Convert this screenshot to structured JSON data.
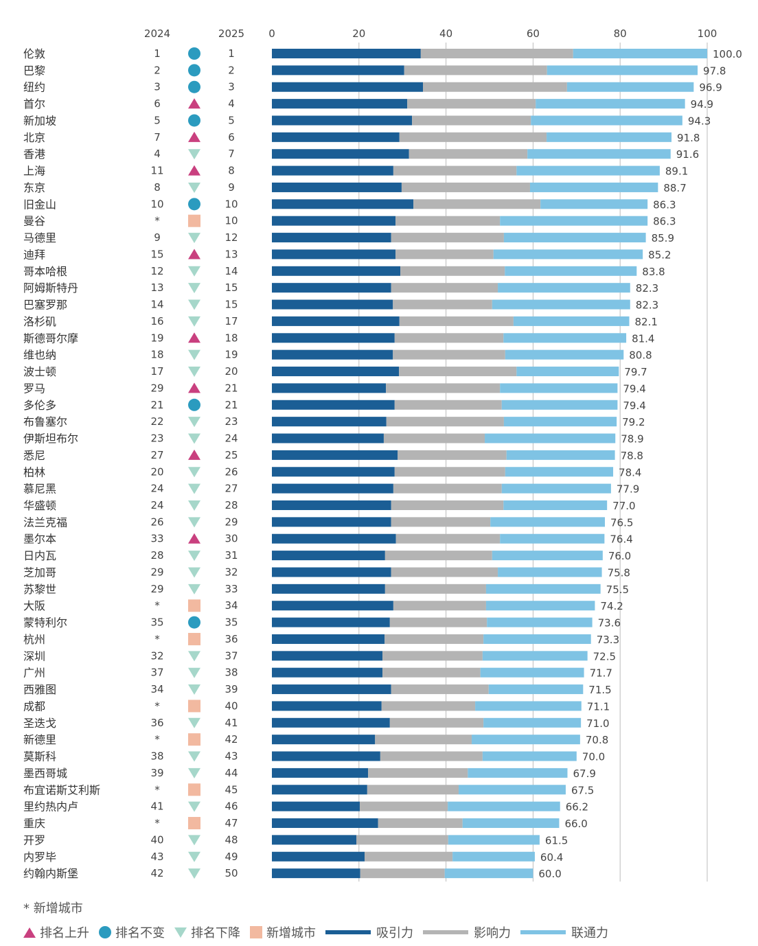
{
  "chart_data": {
    "type": "bar",
    "orientation": "horizontal",
    "stacked": true,
    "xlim": [
      0,
      100
    ],
    "xticks": [
      0,
      20,
      40,
      60,
      80,
      100
    ],
    "grid": true,
    "column_headers": {
      "rank_2024": "2024",
      "rank_2025": "2025"
    },
    "categories": [
      "伦敦",
      "巴黎",
      "纽约",
      "首尔",
      "新加坡",
      "北京",
      "香港",
      "上海",
      "东京",
      "旧金山",
      "曼谷",
      "马德里",
      "迪拜",
      "哥本哈根",
      "阿姆斯特丹",
      "巴塞罗那",
      "洛杉矶",
      "斯德哥尔摩",
      "维也纳",
      "波士顿",
      "罗马",
      "多伦多",
      "布鲁塞尔",
      "伊斯坦布尔",
      "悉尼",
      "柏林",
      "慕尼黑",
      "华盛顿",
      "法兰克福",
      "墨尔本",
      "日内瓦",
      "芝加哥",
      "苏黎世",
      "大阪",
      "蒙特利尔",
      "杭州",
      "深圳",
      "广州",
      "西雅图",
      "成都",
      "圣迭戈",
      "新德里",
      "莫斯科",
      "墨西哥城",
      "布宜诺斯艾利斯",
      "里约热内卢",
      "重庆",
      "开罗",
      "内罗毕",
      "约翰内斯堡"
    ],
    "rank_2024": [
      "1",
      "2",
      "3",
      "6",
      "5",
      "7",
      "4",
      "11",
      "8",
      "10",
      "*",
      "9",
      "15",
      "12",
      "13",
      "14",
      "16",
      "19",
      "18",
      "17",
      "29",
      "21",
      "22",
      "23",
      "27",
      "20",
      "24",
      "24",
      "26",
      "33",
      "28",
      "29",
      "29",
      "*",
      "35",
      "*",
      "32",
      "37",
      "34",
      "*",
      "36",
      "*",
      "38",
      "39",
      "*",
      "41",
      "*",
      "40",
      "43",
      "42"
    ],
    "rank_2025": [
      "1",
      "2",
      "3",
      "4",
      "5",
      "6",
      "7",
      "8",
      "9",
      "10",
      "10",
      "12",
      "13",
      "14",
      "15",
      "15",
      "17",
      "18",
      "19",
      "20",
      "21",
      "21",
      "23",
      "24",
      "25",
      "26",
      "27",
      "28",
      "29",
      "30",
      "31",
      "32",
      "33",
      "34",
      "35",
      "36",
      "37",
      "38",
      "39",
      "40",
      "41",
      "42",
      "43",
      "44",
      "45",
      "46",
      "47",
      "48",
      "49",
      "50"
    ],
    "rank_change": [
      "same",
      "same",
      "same",
      "up",
      "same",
      "up",
      "down",
      "up",
      "down",
      "same",
      "new",
      "down",
      "up",
      "down",
      "down",
      "down",
      "down",
      "up",
      "down",
      "down",
      "up",
      "same",
      "down",
      "down",
      "up",
      "down",
      "down",
      "down",
      "down",
      "up",
      "down",
      "down",
      "down",
      "new",
      "same",
      "new",
      "down",
      "down",
      "down",
      "new",
      "down",
      "new",
      "down",
      "down",
      "new",
      "down",
      "new",
      "down",
      "down",
      "down"
    ],
    "totals": [
      "100.0",
      "97.8",
      "96.9",
      "94.9",
      "94.3",
      "91.8",
      "91.6",
      "89.1",
      "88.7",
      "86.3",
      "86.3",
      "85.9",
      "85.2",
      "83.8",
      "82.3",
      "82.3",
      "82.1",
      "81.4",
      "80.8",
      "79.7",
      "79.4",
      "79.4",
      "79.2",
      "78.9",
      "78.8",
      "78.4",
      "77.9",
      "77.0",
      "76.5",
      "76.4",
      "76.0",
      "75.8",
      "75.5",
      "74.2",
      "73.6",
      "73.3",
      "72.5",
      "71.7",
      "71.5",
      "71.1",
      "71.0",
      "70.8",
      "70.0",
      "67.9",
      "67.5",
      "66.2",
      "66.0",
      "61.5",
      "60.4",
      "60.0"
    ],
    "series": [
      {
        "name": "吸引力",
        "color": "#1b5e95",
        "values": [
          34.2,
          30.4,
          34.7,
          31.1,
          32.2,
          29.3,
          31.5,
          27.9,
          29.8,
          32.5,
          28.4,
          27.4,
          28.4,
          29.5,
          27.4,
          27.8,
          29.3,
          28.2,
          27.8,
          29.2,
          26.2,
          28.2,
          26.3,
          25.7,
          28.9,
          28.2,
          27.9,
          27.4,
          27.4,
          28.5,
          26.0,
          27.4,
          26.0,
          27.9,
          27.1,
          25.9,
          25.4,
          25.4,
          27.4,
          25.2,
          27.1,
          23.7,
          24.9,
          22.1,
          21.9,
          20.2,
          24.4,
          19.4,
          21.3,
          20.3
        ]
      },
      {
        "name": "影响力",
        "color": "#b4b4b4",
        "values": [
          35.0,
          32.8,
          33.1,
          29.5,
          27.3,
          33.8,
          27.2,
          28.3,
          29.5,
          29.2,
          24.0,
          25.9,
          22.5,
          24.0,
          24.5,
          22.8,
          26.2,
          25.0,
          25.8,
          27.0,
          26.2,
          24.6,
          27.0,
          23.2,
          25.0,
          25.4,
          24.9,
          25.8,
          22.8,
          23.9,
          24.6,
          24.5,
          23.2,
          21.3,
          22.3,
          22.7,
          23.0,
          22.5,
          22.4,
          21.5,
          21.5,
          22.2,
          23.5,
          22.9,
          21.0,
          20.2,
          19.4,
          21.1,
          20.2,
          19.4
        ]
      },
      {
        "name": "联通力",
        "color": "#7fc3e4",
        "values": [
          30.8,
          34.6,
          29.1,
          34.3,
          34.8,
          28.7,
          32.9,
          32.9,
          29.4,
          24.6,
          33.9,
          32.6,
          34.3,
          30.3,
          30.4,
          31.7,
          26.6,
          28.2,
          27.2,
          23.5,
          27.0,
          26.6,
          25.9,
          30.0,
          24.9,
          24.8,
          25.1,
          23.8,
          26.3,
          24.0,
          25.4,
          23.9,
          26.3,
          25.0,
          24.2,
          24.7,
          24.1,
          23.8,
          21.7,
          24.4,
          22.4,
          24.9,
          21.6,
          22.9,
          24.6,
          25.8,
          22.2,
          21.0,
          18.9,
          20.3
        ]
      }
    ],
    "footnote": "*  新增城市",
    "legend": {
      "position": "bottom",
      "markers": [
        {
          "key": "up",
          "label": "排名上升",
          "color": "#c9407f",
          "shape": "triangle-up"
        },
        {
          "key": "same",
          "label": "排名不变",
          "color": "#2b9bbf",
          "shape": "circle"
        },
        {
          "key": "down",
          "label": "排名下降",
          "color": "#a6d7ca",
          "shape": "triangle-down"
        },
        {
          "key": "new",
          "label": "新增城市",
          "color": "#f2b9a0",
          "shape": "square"
        }
      ]
    }
  }
}
